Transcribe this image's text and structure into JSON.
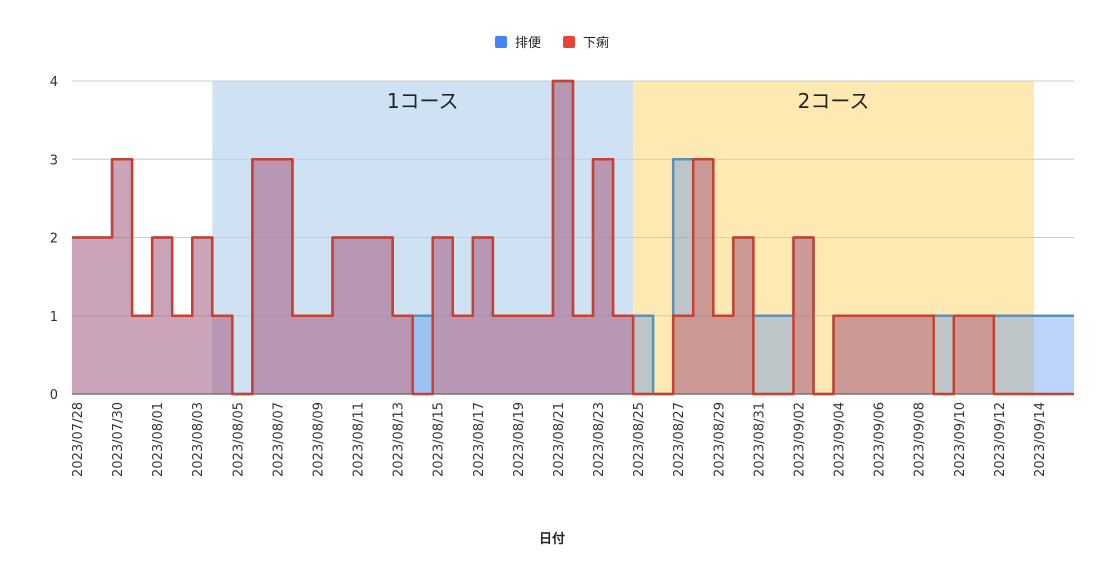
{
  "chart_data": {
    "type": "area",
    "xlabel": "日付",
    "ylim": [
      0,
      4
    ],
    "yticks": [
      0,
      1,
      2,
      3,
      4
    ],
    "grid": true,
    "legend_position": "top",
    "step": true,
    "x": [
      "2023/07/28",
      "2023/07/29",
      "2023/07/30",
      "2023/07/31",
      "2023/08/01",
      "2023/08/02",
      "2023/08/03",
      "2023/08/04",
      "2023/08/05",
      "2023/08/06",
      "2023/08/07",
      "2023/08/08",
      "2023/08/09",
      "2023/08/10",
      "2023/08/11",
      "2023/08/12",
      "2023/08/13",
      "2023/08/14",
      "2023/08/15",
      "2023/08/16",
      "2023/08/17",
      "2023/08/18",
      "2023/08/19",
      "2023/08/20",
      "2023/08/21",
      "2023/08/22",
      "2023/08/23",
      "2023/08/24",
      "2023/08/25",
      "2023/08/26",
      "2023/08/27",
      "2023/08/28",
      "2023/08/29",
      "2023/08/30",
      "2023/08/31",
      "2023/09/01",
      "2023/09/02",
      "2023/09/03",
      "2023/09/04",
      "2023/09/05",
      "2023/09/06",
      "2023/09/07",
      "2023/09/08",
      "2023/09/09",
      "2023/09/10",
      "2023/09/11",
      "2023/09/12",
      "2023/09/13",
      "2023/09/14",
      "2023/09/15"
    ],
    "tick_labels": [
      "2023/07/28",
      "2023/07/30",
      "2023/08/01",
      "2023/08/03",
      "2023/08/05",
      "2023/08/07",
      "2023/08/09",
      "2023/08/11",
      "2023/08/13",
      "2023/08/15",
      "2023/08/17",
      "2023/08/19",
      "2023/08/21",
      "2023/08/23",
      "2023/08/25",
      "2023/08/27",
      "2023/08/29",
      "2023/08/31",
      "2023/09/02",
      "2023/09/04",
      "2023/09/06",
      "2023/09/08",
      "2023/09/10",
      "2023/09/12",
      "2023/09/14"
    ],
    "series": [
      {
        "name": "排便",
        "color": "#4285f4",
        "values": [
          2,
          2,
          3,
          1,
          2,
          1,
          2,
          1,
          0,
          3,
          3,
          1,
          1,
          2,
          2,
          2,
          1,
          1,
          2,
          1,
          2,
          1,
          1,
          1,
          4,
          1,
          3,
          1,
          1,
          0,
          3,
          3,
          1,
          2,
          1,
          1,
          2,
          0,
          1,
          1,
          1,
          1,
          1,
          1,
          1,
          1,
          1,
          1,
          1,
          1
        ]
      },
      {
        "name": "下痢",
        "color": "#ea4335",
        "values": [
          2,
          2,
          3,
          1,
          2,
          1,
          2,
          1,
          0,
          3,
          3,
          1,
          1,
          2,
          2,
          2,
          1,
          0,
          2,
          1,
          2,
          1,
          1,
          1,
          4,
          1,
          3,
          1,
          0,
          0,
          1,
          3,
          1,
          2,
          0,
          0,
          2,
          0,
          1,
          1,
          1,
          1,
          1,
          0,
          1,
          1,
          0,
          0,
          0,
          0
        ]
      }
    ],
    "bands": [
      {
        "label": "1コース",
        "start": "2023/08/04",
        "end": "2023/08/25",
        "color": "#cfe2f3"
      },
      {
        "label": "2コース",
        "start": "2023/08/25",
        "end": "2023/09/14",
        "color": "#fde9b1"
      }
    ]
  }
}
